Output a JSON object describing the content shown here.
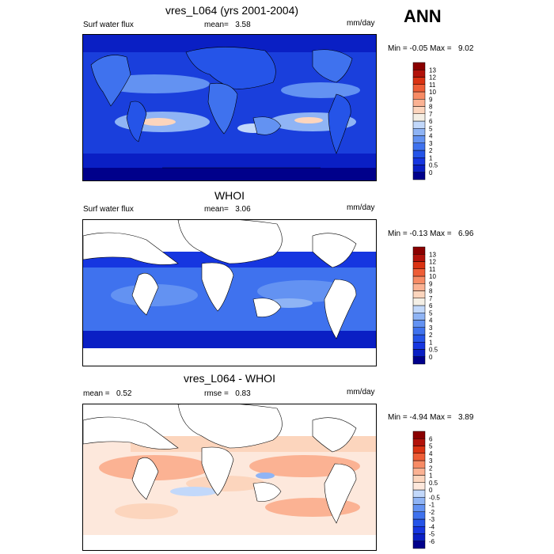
{
  "season": "ANN",
  "units": "mm/day",
  "panels": [
    {
      "title": "vres_L064 (yrs 2001-2004)",
      "left_label": "Surf water flux",
      "stat_label": "mean=",
      "stat_value": "3.58",
      "units": "mm/day",
      "minmax_label": "Min = ",
      "min": "-0.05",
      "max_label": "Max = ",
      "max": "9.02"
    },
    {
      "title": "WHOI",
      "left_label": "Surf water flux",
      "stat_label": "mean=",
      "stat_value": "3.06",
      "units": "mm/day",
      "minmax_label": "Min = ",
      "min": "-0.13",
      "max_label": "Max = ",
      "max": "6.96"
    },
    {
      "title": "vres_L064 - WHOI",
      "left_label": "mean =",
      "left_value": "0.52",
      "stat_label": "rmse =",
      "stat_value": "0.83",
      "units": "mm/day",
      "minmax_label": "Min = ",
      "min": "-4.94",
      "max_label": "Max = ",
      "max": "3.89"
    }
  ],
  "colorbars": {
    "abs": {
      "labels": [
        "0",
        "0.5",
        "1",
        "2",
        "3",
        "4",
        "5",
        "6",
        "7",
        "8",
        "9",
        "10",
        "11",
        "12",
        "13"
      ],
      "colors": [
        "#00008b",
        "#0a1fc4",
        "#1636e0",
        "#2554e8",
        "#3f72ee",
        "#6392f2",
        "#8fb4f5",
        "#c2d8fa",
        "#f4efe5",
        "#fcd5bd",
        "#fbb293",
        "#f78b65",
        "#ee5d36",
        "#da3212",
        "#b2120a",
        "#8a0000"
      ]
    },
    "diff": {
      "labels": [
        "-6",
        "-5",
        "-4",
        "-3",
        "-2",
        "-1",
        "-0.5",
        "0",
        "0.5",
        "1",
        "2",
        "3",
        "4",
        "5",
        "6"
      ],
      "colors": [
        "#00008b",
        "#0a1fc4",
        "#1636e0",
        "#2554e8",
        "#3f72ee",
        "#6392f2",
        "#8fb4f5",
        "#c2d8fa",
        "#fde8dc",
        "#fcd5bd",
        "#fbb293",
        "#f78b65",
        "#ee5d36",
        "#da3212",
        "#b2120a",
        "#8a0000"
      ]
    }
  }
}
